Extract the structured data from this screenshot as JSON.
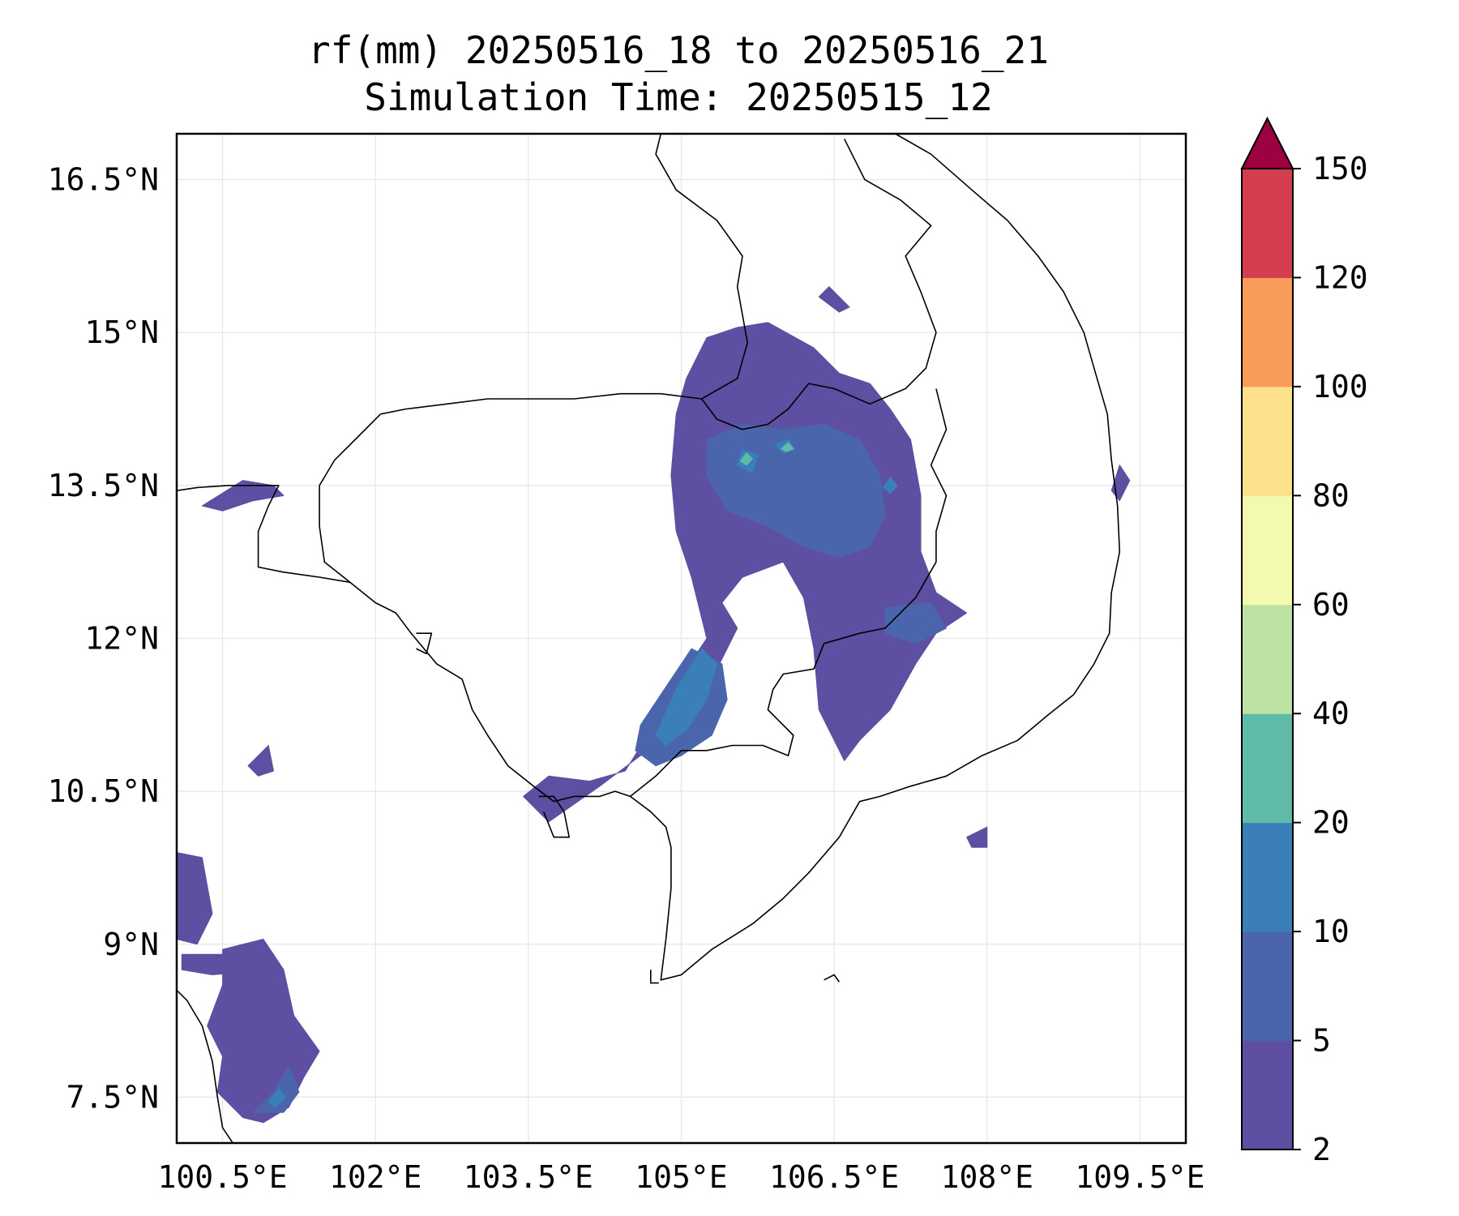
{
  "title": {
    "line1": "rf(mm) 20250516_18 to 20250516_21",
    "line2": "Simulation Time: 20250515_12"
  },
  "map": {
    "lon_range": [
      100.05,
      109.95
    ],
    "lat_range": [
      7.05,
      16.95
    ],
    "gridlines": true,
    "coastline_color": "#000000"
  },
  "axes": {
    "x_ticks": [
      {
        "value": 100.5,
        "label": "100.5°E"
      },
      {
        "value": 102.0,
        "label": "102°E"
      },
      {
        "value": 103.5,
        "label": "103.5°E"
      },
      {
        "value": 105.0,
        "label": "105°E"
      },
      {
        "value": 106.5,
        "label": "106.5°E"
      },
      {
        "value": 108.0,
        "label": "108°E"
      },
      {
        "value": 109.5,
        "label": "109.5°E"
      }
    ],
    "y_ticks": [
      {
        "value": 16.5,
        "label": "16.5°N"
      },
      {
        "value": 15.0,
        "label": "15°N"
      },
      {
        "value": 13.5,
        "label": "13.5°N"
      },
      {
        "value": 12.0,
        "label": "12°N"
      },
      {
        "value": 10.5,
        "label": "10.5°N"
      },
      {
        "value": 9.0,
        "label": "9°N"
      },
      {
        "value": 7.5,
        "label": "7.5°N"
      }
    ]
  },
  "colorbar": {
    "levels": [
      2,
      5,
      10,
      20,
      40,
      60,
      80,
      100,
      120,
      150
    ],
    "labels": [
      "2",
      "5",
      "10",
      "20",
      "40",
      "60",
      "80",
      "100",
      "120",
      "150"
    ],
    "colors": [
      "#5e4fa2",
      "#4b65ad",
      "#3a7fb8",
      "#5fbaa8",
      "#bde2a3",
      "#f3faad",
      "#fde08b",
      "#f99c5a",
      "#d53e4f"
    ],
    "extend_color": "#9e0142",
    "extend": "max"
  },
  "rain_regions": [
    {
      "level": 0,
      "points": [
        [
          105.05,
          14.55
        ],
        [
          105.25,
          14.95
        ],
        [
          105.55,
          15.05
        ],
        [
          105.85,
          15.1
        ],
        [
          106.3,
          14.85
        ],
        [
          106.55,
          14.6
        ],
        [
          106.85,
          14.5
        ],
        [
          107.05,
          14.25
        ],
        [
          107.25,
          13.95
        ],
        [
          107.35,
          13.4
        ],
        [
          107.35,
          12.85
        ],
        [
          107.5,
          12.45
        ],
        [
          107.8,
          12.25
        ],
        [
          107.5,
          12.05
        ],
        [
          107.3,
          11.75
        ],
        [
          107.05,
          11.3
        ],
        [
          106.75,
          11.0
        ],
        [
          106.6,
          10.8
        ],
        [
          106.35,
          11.3
        ],
        [
          106.3,
          11.9
        ],
        [
          106.2,
          12.4
        ],
        [
          106.0,
          12.75
        ],
        [
          105.6,
          12.6
        ],
        [
          105.4,
          12.35
        ],
        [
          105.55,
          12.1
        ],
        [
          105.35,
          11.7
        ],
        [
          105.2,
          11.2
        ],
        [
          105.0,
          11.0
        ],
        [
          104.6,
          10.85
        ],
        [
          104.2,
          10.55
        ],
        [
          103.7,
          10.2
        ],
        [
          103.45,
          10.45
        ],
        [
          103.7,
          10.65
        ],
        [
          104.1,
          10.6
        ],
        [
          104.45,
          10.7
        ],
        [
          104.7,
          11.1
        ],
        [
          104.95,
          11.55
        ],
        [
          105.25,
          12.0
        ],
        [
          105.1,
          12.6
        ],
        [
          104.95,
          13.05
        ],
        [
          104.9,
          13.6
        ],
        [
          104.95,
          14.2
        ]
      ]
    },
    {
      "level": 1,
      "points": [
        [
          105.25,
          13.95
        ],
        [
          105.6,
          14.1
        ],
        [
          106.0,
          14.05
        ],
        [
          106.4,
          14.1
        ],
        [
          106.75,
          13.95
        ],
        [
          106.95,
          13.6
        ],
        [
          107.0,
          13.2
        ],
        [
          106.85,
          12.9
        ],
        [
          106.55,
          12.8
        ],
        [
          106.2,
          12.9
        ],
        [
          105.85,
          13.1
        ],
        [
          105.45,
          13.25
        ],
        [
          105.25,
          13.6
        ]
      ]
    },
    {
      "level": 1,
      "points": [
        [
          104.8,
          11.45
        ],
        [
          105.1,
          11.9
        ],
        [
          105.4,
          11.75
        ],
        [
          105.45,
          11.4
        ],
        [
          105.3,
          11.05
        ],
        [
          105.0,
          10.85
        ],
        [
          104.75,
          10.75
        ],
        [
          104.55,
          10.9
        ],
        [
          104.6,
          11.15
        ]
      ]
    },
    {
      "level": 1,
      "points": [
        [
          107.0,
          12.3
        ],
        [
          107.45,
          12.35
        ],
        [
          107.6,
          12.1
        ],
        [
          107.3,
          11.95
        ],
        [
          107.0,
          12.05
        ]
      ]
    },
    {
      "level": 2,
      "points": [
        [
          104.75,
          11.05
        ],
        [
          104.95,
          11.5
        ],
        [
          105.2,
          11.9
        ],
        [
          105.35,
          11.75
        ],
        [
          105.25,
          11.4
        ],
        [
          105.05,
          11.1
        ],
        [
          104.85,
          10.95
        ]
      ]
    },
    {
      "level": 2,
      "points": [
        [
          105.55,
          13.7
        ],
        [
          105.6,
          13.85
        ],
        [
          105.75,
          13.8
        ],
        [
          105.7,
          13.62
        ]
      ]
    },
    {
      "level": 2,
      "points": [
        [
          105.92,
          13.9
        ],
        [
          106.05,
          13.95
        ],
        [
          106.12,
          13.85
        ],
        [
          106.0,
          13.82
        ]
      ]
    },
    {
      "level": 2,
      "points": [
        [
          106.98,
          13.48
        ],
        [
          107.05,
          13.58
        ],
        [
          107.12,
          13.5
        ],
        [
          107.05,
          13.42
        ]
      ]
    },
    {
      "level": 3,
      "points": [
        [
          105.58,
          13.74
        ],
        [
          105.64,
          13.82
        ],
        [
          105.7,
          13.76
        ],
        [
          105.64,
          13.7
        ]
      ]
    },
    {
      "level": 3,
      "points": [
        [
          105.98,
          13.86
        ],
        [
          106.05,
          13.92
        ],
        [
          106.1,
          13.86
        ],
        [
          106.03,
          13.83
        ]
      ]
    },
    {
      "level": 0,
      "points": [
        [
          100.3,
          13.3
        ],
        [
          100.7,
          13.55
        ],
        [
          101.0,
          13.5
        ],
        [
          101.1,
          13.4
        ],
        [
          100.8,
          13.35
        ],
        [
          100.5,
          13.25
        ]
      ]
    },
    {
      "level": 0,
      "points": [
        [
          100.05,
          9.9
        ],
        [
          100.3,
          9.85
        ],
        [
          100.4,
          9.3
        ],
        [
          100.25,
          9.0
        ],
        [
          100.05,
          9.05
        ]
      ]
    },
    {
      "level": 0,
      "points": [
        [
          100.5,
          8.95
        ],
        [
          100.9,
          9.05
        ],
        [
          101.1,
          8.75
        ],
        [
          101.2,
          8.3
        ],
        [
          101.45,
          7.95
        ],
        [
          101.3,
          7.7
        ],
        [
          101.15,
          7.4
        ],
        [
          100.9,
          7.25
        ],
        [
          100.7,
          7.3
        ],
        [
          100.45,
          7.55
        ],
        [
          100.5,
          7.9
        ],
        [
          100.35,
          8.2
        ],
        [
          100.5,
          8.6
        ]
      ]
    },
    {
      "level": 0,
      "points": [
        [
          100.1,
          8.9
        ],
        [
          100.7,
          8.9
        ],
        [
          100.9,
          8.75
        ],
        [
          100.4,
          8.7
        ],
        [
          100.1,
          8.75
        ]
      ]
    },
    {
      "level": 1,
      "points": [
        [
          100.8,
          7.35
        ],
        [
          101.0,
          7.55
        ],
        [
          101.15,
          7.8
        ],
        [
          101.25,
          7.55
        ],
        [
          101.1,
          7.35
        ]
      ]
    },
    {
      "level": 2,
      "points": [
        [
          100.95,
          7.45
        ],
        [
          101.05,
          7.58
        ],
        [
          101.12,
          7.5
        ],
        [
          101.02,
          7.4
        ]
      ]
    },
    {
      "level": 0,
      "points": [
        [
          100.75,
          10.75
        ],
        [
          100.95,
          10.95
        ],
        [
          101.0,
          10.7
        ],
        [
          100.85,
          10.65
        ]
      ]
    },
    {
      "level": 0,
      "points": [
        [
          106.35,
          15.35
        ],
        [
          106.55,
          15.2
        ],
        [
          106.65,
          15.25
        ],
        [
          106.45,
          15.45
        ]
      ]
    },
    {
      "level": 0,
      "points": [
        [
          109.3,
          13.7
        ],
        [
          109.4,
          13.55
        ],
        [
          109.3,
          13.35
        ],
        [
          109.22,
          13.45
        ]
      ]
    },
    {
      "level": 0,
      "points": [
        [
          107.8,
          10.05
        ],
        [
          108.0,
          10.15
        ],
        [
          108.0,
          9.95
        ],
        [
          107.85,
          9.95
        ]
      ]
    }
  ],
  "coastlines": [
    [
      [
        100.05,
        13.45
      ],
      [
        100.25,
        13.48
      ],
      [
        100.55,
        13.5
      ],
      [
        100.9,
        13.5
      ],
      [
        101.05,
        13.5
      ],
      [
        100.95,
        13.3
      ],
      [
        100.85,
        13.05
      ],
      [
        100.85,
        12.7
      ],
      [
        101.1,
        12.65
      ],
      [
        101.45,
        12.6
      ],
      [
        101.75,
        12.55
      ],
      [
        102.0,
        12.35
      ],
      [
        102.2,
        12.25
      ],
      [
        102.35,
        12.05
      ],
      [
        102.6,
        11.75
      ],
      [
        102.85,
        11.6
      ],
      [
        102.95,
        11.3
      ],
      [
        103.1,
        11.05
      ],
      [
        103.3,
        10.75
      ],
      [
        103.55,
        10.55
      ],
      [
        103.75,
        10.4
      ],
      [
        103.95,
        10.45
      ],
      [
        104.2,
        10.45
      ],
      [
        104.35,
        10.5
      ],
      [
        104.5,
        10.45
      ],
      [
        104.7,
        10.3
      ],
      [
        104.85,
        10.15
      ],
      [
        104.9,
        9.95
      ],
      [
        104.9,
        9.55
      ],
      [
        104.85,
        9.05
      ],
      [
        104.8,
        8.65
      ],
      [
        105.0,
        8.7
      ],
      [
        105.3,
        8.95
      ],
      [
        105.7,
        9.2
      ],
      [
        106.0,
        9.45
      ],
      [
        106.25,
        9.7
      ],
      [
        106.55,
        10.05
      ],
      [
        106.75,
        10.4
      ],
      [
        106.95,
        10.45
      ],
      [
        107.25,
        10.55
      ],
      [
        107.6,
        10.65
      ],
      [
        107.95,
        10.85
      ],
      [
        108.3,
        11.0
      ],
      [
        108.6,
        11.25
      ],
      [
        108.85,
        11.45
      ],
      [
        109.05,
        11.75
      ],
      [
        109.2,
        12.05
      ],
      [
        109.22,
        12.45
      ],
      [
        109.3,
        12.85
      ],
      [
        109.28,
        13.3
      ],
      [
        109.22,
        13.75
      ],
      [
        109.18,
        14.2
      ],
      [
        109.05,
        14.65
      ],
      [
        108.95,
        15.0
      ],
      [
        108.75,
        15.4
      ],
      [
        108.5,
        15.75
      ],
      [
        108.2,
        16.1
      ],
      [
        107.85,
        16.4
      ],
      [
        107.45,
        16.75
      ],
      [
        107.1,
        16.95
      ]
    ],
    [
      [
        100.05,
        12.8
      ],
      [
        100.05,
        13.15
      ]
    ],
    [
      [
        100.05,
        8.55
      ],
      [
        100.15,
        8.45
      ],
      [
        100.3,
        8.2
      ],
      [
        100.4,
        7.85
      ],
      [
        100.45,
        7.5
      ],
      [
        100.5,
        7.2
      ],
      [
        100.6,
        7.05
      ]
    ],
    [
      [
        104.78,
        8.62
      ],
      [
        104.7,
        8.62
      ],
      [
        104.7,
        8.75
      ]
    ],
    [
      [
        102.4,
        12.05
      ],
      [
        102.55,
        12.05
      ],
      [
        102.5,
        11.85
      ],
      [
        102.4,
        11.9
      ]
    ],
    [
      [
        103.6,
        10.45
      ],
      [
        103.75,
        10.45
      ],
      [
        103.85,
        10.3
      ],
      [
        103.9,
        10.05
      ],
      [
        103.75,
        10.05
      ],
      [
        103.65,
        10.3
      ]
    ],
    [
      [
        106.4,
        8.65
      ],
      [
        106.5,
        8.7
      ],
      [
        106.55,
        8.63
      ]
    ]
  ],
  "borders": [
    [
      [
        102.05,
        14.2
      ],
      [
        102.3,
        14.25
      ],
      [
        102.7,
        14.3
      ],
      [
        103.1,
        14.35
      ],
      [
        103.5,
        14.35
      ],
      [
        103.95,
        14.35
      ],
      [
        104.4,
        14.4
      ],
      [
        104.8,
        14.4
      ],
      [
        105.2,
        14.35
      ],
      [
        105.35,
        14.15
      ],
      [
        105.6,
        14.05
      ],
      [
        105.85,
        14.1
      ],
      [
        106.05,
        14.25
      ],
      [
        106.25,
        14.5
      ],
      [
        106.5,
        14.45
      ],
      [
        106.85,
        14.3
      ],
      [
        107.2,
        14.45
      ],
      [
        107.4,
        14.65
      ],
      [
        107.5,
        15.0
      ],
      [
        107.35,
        15.4
      ],
      [
        107.2,
        15.75
      ],
      [
        107.45,
        16.05
      ],
      [
        107.15,
        16.3
      ],
      [
        106.8,
        16.5
      ],
      [
        106.6,
        16.9
      ]
    ],
    [
      [
        105.2,
        14.35
      ],
      [
        105.55,
        14.55
      ],
      [
        105.65,
        14.9
      ],
      [
        105.55,
        15.45
      ],
      [
        105.6,
        15.75
      ],
      [
        105.35,
        16.1
      ],
      [
        104.95,
        16.4
      ],
      [
        104.75,
        16.75
      ],
      [
        104.8,
        16.95
      ]
    ],
    [
      [
        102.05,
        14.2
      ],
      [
        101.85,
        14.0
      ],
      [
        101.6,
        13.75
      ],
      [
        101.45,
        13.5
      ],
      [
        101.45,
        13.1
      ],
      [
        101.5,
        12.75
      ],
      [
        101.75,
        12.55
      ]
    ],
    [
      [
        107.5,
        14.45
      ],
      [
        107.6,
        14.05
      ],
      [
        107.45,
        13.7
      ],
      [
        107.6,
        13.4
      ],
      [
        107.5,
        13.05
      ],
      [
        107.5,
        12.75
      ],
      [
        107.3,
        12.4
      ],
      [
        107.0,
        12.1
      ],
      [
        106.75,
        12.05
      ],
      [
        106.4,
        11.95
      ],
      [
        106.3,
        11.7
      ],
      [
        106.0,
        11.65
      ],
      [
        105.9,
        11.5
      ],
      [
        105.85,
        11.3
      ],
      [
        106.1,
        11.05
      ],
      [
        106.05,
        10.85
      ],
      [
        105.8,
        10.95
      ],
      [
        105.5,
        10.95
      ],
      [
        105.25,
        10.9
      ],
      [
        105.0,
        10.9
      ],
      [
        104.75,
        10.65
      ],
      [
        104.5,
        10.45
      ]
    ]
  ]
}
